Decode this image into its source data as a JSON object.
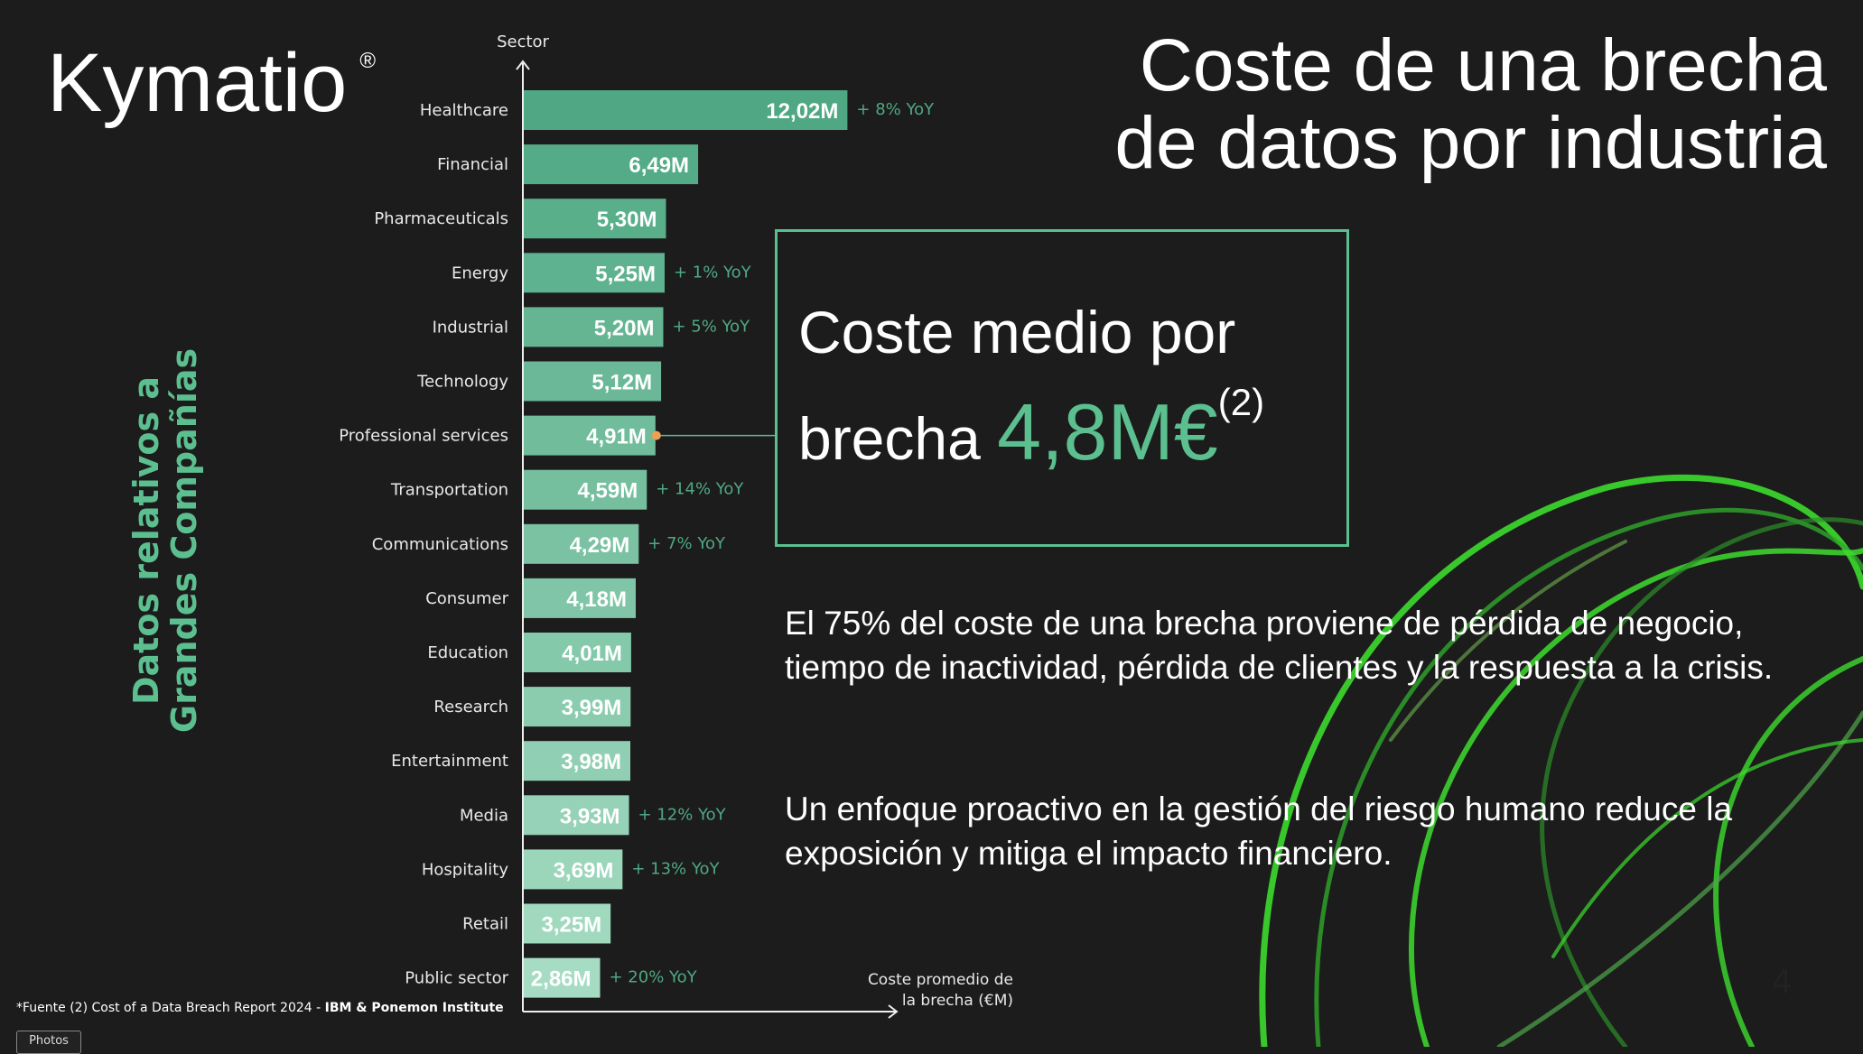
{
  "logo": {
    "text": "Kymatio",
    "reg": "®"
  },
  "side_label": {
    "line1": "Datos relativos a",
    "line2": "Grandes Compañías"
  },
  "title": {
    "line1": "Coste de una brecha",
    "line2": "de datos por industria"
  },
  "highlight_box": {
    "line1": "Coste medio por",
    "line2_prefix": "brecha ",
    "value": "4,8M€",
    "superscript": "(2)"
  },
  "paragraphs": [
    "El 75% del coste de una brecha proviene de pérdida de negocio, tiempo de inactividad, pérdida de clientes y  la respuesta a la crisis.",
    "Un enfoque proactivo en la gestión del riesgo humano reduce la exposición y mitiga el impacto financiero."
  ],
  "page_number": "4",
  "footer": {
    "source": "*Fuente (2) Cost of a Data Breach Report 2024 - ",
    "source_bold": "IBM  & Ponemon Institute"
  },
  "photos_button": "Photos",
  "colors": {
    "accent": "#5cbf8f",
    "bar_top": "#4fa883",
    "bar_bottom": "#a6dcc3",
    "marker": "#f0a050",
    "swirl": "#3ddc2e"
  },
  "chart_data": {
    "type": "bar",
    "orientation": "horizontal",
    "ylabel": "Sector",
    "xlabel": "Coste promedio de la brecha (€M)",
    "xlabel_lines": [
      "Coste promedio de",
      "la brecha (€M)"
    ],
    "categories": [
      "Healthcare",
      "Financial",
      "Pharmaceuticals",
      "Energy",
      "Industrial",
      "Technology",
      "Professional services",
      "Transportation",
      "Communications",
      "Consumer",
      "Education",
      "Research",
      "Entertainment",
      "Media",
      "Hospitality",
      "Retail",
      "Public sector"
    ],
    "values": [
      12.02,
      6.49,
      5.3,
      5.25,
      5.2,
      5.12,
      4.91,
      4.59,
      4.29,
      4.18,
      4.01,
      3.99,
      3.98,
      3.93,
      3.69,
      3.25,
      2.86
    ],
    "data_labels": [
      "12,02M",
      "6,49M",
      "5,30M",
      "5,25M",
      "5,20M",
      "5,12M",
      "4,91M",
      "4,59M",
      "4,29M",
      "4,18M",
      "4,01M",
      "3,99M",
      "3,98M",
      "3,93M",
      "3,69M",
      "3,25M",
      "2,86M"
    ],
    "annotations": [
      "+ 8% YoY",
      "",
      "",
      "+ 1% YoY",
      "+ 5% YoY",
      "",
      "",
      "+ 14% YoY",
      "+ 7% YoY",
      "",
      "",
      "",
      "",
      "+ 12% YoY",
      "+ 13% YoY",
      "",
      "+ 20% YoY"
    ],
    "highlighted_category": "Professional services",
    "grid": false
  }
}
